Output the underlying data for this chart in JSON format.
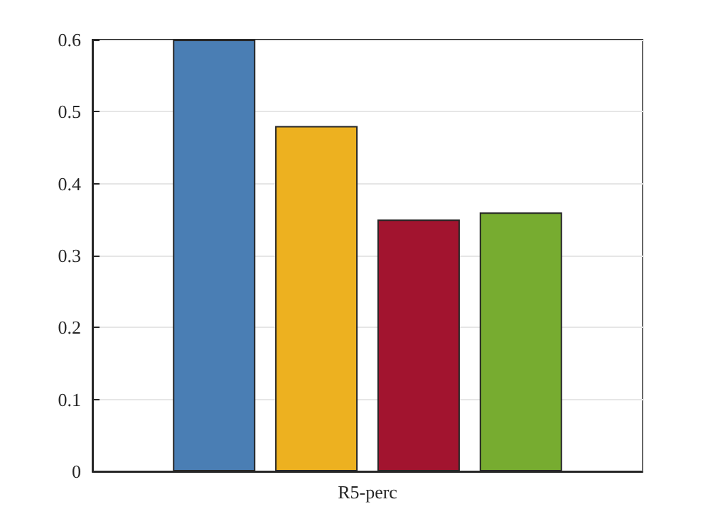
{
  "chart_data": {
    "type": "bar",
    "categories": [
      "R5-perc"
    ],
    "series": [
      {
        "color": "#4a7eb4",
        "values": [
          0.6
        ]
      },
      {
        "color": "#edb120",
        "values": [
          0.48
        ]
      },
      {
        "color": "#a2142f",
        "values": [
          0.35
        ]
      },
      {
        "color": "#77ac30",
        "values": [
          0.36
        ]
      }
    ],
    "ylim": [
      0,
      0.6
    ],
    "yticks": [
      0,
      0.1,
      0.2,
      0.3,
      0.4,
      0.5,
      0.6
    ],
    "grid": true
  }
}
